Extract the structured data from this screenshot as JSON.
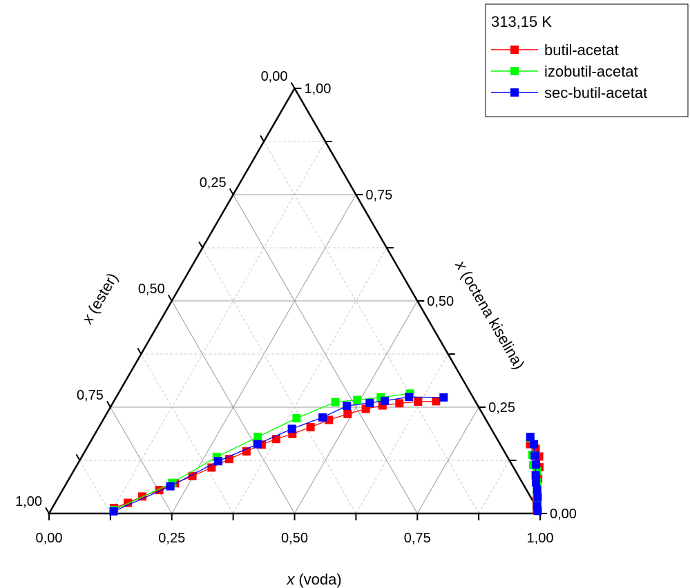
{
  "chart_data": {
    "type": "ternary",
    "temperature_label": "313,15 K",
    "axes": {
      "bottom": {
        "var": "x",
        "name": "(voda)",
        "ticks": [
          "0,00",
          "0,25",
          "0,50",
          "0,75",
          "1,00"
        ]
      },
      "left": {
        "var": "x",
        "name": "(ester)",
        "ticks": [
          "0,00",
          "0,25",
          "0,50",
          "0,75",
          "1,00"
        ]
      },
      "right": {
        "var": "x",
        "name": "(octena kiselina)",
        "ticks": [
          "0,00",
          "0,25",
          "0,50",
          "0,75",
          "1,00"
        ]
      }
    },
    "grid": true,
    "legend": {
      "position": "top-right"
    },
    "series": [
      {
        "name": "butil-acetat",
        "color": "#ff0000",
        "points": [
          [
            0.126,
            0.013
          ],
          [
            0.148,
            0.025
          ],
          [
            0.17,
            0.04
          ],
          [
            0.197,
            0.055
          ],
          [
            0.221,
            0.071
          ],
          [
            0.248,
            0.088
          ],
          [
            0.277,
            0.108
          ],
          [
            0.303,
            0.128
          ],
          [
            0.329,
            0.146
          ],
          [
            0.352,
            0.162
          ],
          [
            0.375,
            0.175
          ],
          [
            0.402,
            0.187
          ],
          [
            0.431,
            0.203
          ],
          [
            0.46,
            0.22
          ],
          [
            0.491,
            0.234
          ],
          [
            0.522,
            0.246
          ],
          [
            0.552,
            0.254
          ],
          [
            0.584,
            0.259
          ],
          [
            0.62,
            0.263
          ],
          [
            0.656,
            0.264
          ],
          [
            0.898,
            0.163
          ],
          [
            0.915,
            0.152
          ],
          [
            0.931,
            0.134
          ],
          [
            0.944,
            0.109
          ],
          [
            0.955,
            0.082
          ],
          [
            0.964,
            0.06
          ],
          [
            0.971,
            0.045
          ],
          [
            0.977,
            0.032
          ],
          [
            0.983,
            0.02
          ],
          [
            0.989,
            0.008
          ]
        ]
      },
      {
        "name": "izobutil-acetat",
        "color": "#00ff00",
        "points": [
          [
            0.128,
            0.008
          ],
          [
            0.215,
            0.072
          ],
          [
            0.275,
            0.133
          ],
          [
            0.335,
            0.18
          ],
          [
            0.392,
            0.224
          ],
          [
            0.452,
            0.262
          ],
          [
            0.494,
            0.267
          ],
          [
            0.539,
            0.273
          ],
          [
            0.594,
            0.282
          ],
          [
            0.891,
            0.178
          ],
          [
            0.915,
            0.138
          ],
          [
            0.929,
            0.114
          ],
          [
            0.944,
            0.099
          ],
          [
            0.956,
            0.074
          ],
          [
            0.968,
            0.051
          ],
          [
            0.978,
            0.032
          ],
          [
            0.987,
            0.014
          ]
        ]
      },
      {
        "name": "sec-butil-acetat",
        "color": "#0000ff",
        "points": [
          [
            0.129,
            0.005
          ],
          [
            0.215,
            0.064
          ],
          [
            0.283,
            0.123
          ],
          [
            0.343,
            0.163
          ],
          [
            0.395,
            0.199
          ],
          [
            0.444,
            0.226
          ],
          [
            0.48,
            0.253
          ],
          [
            0.523,
            0.26
          ],
          [
            0.551,
            0.265
          ],
          [
            0.596,
            0.274
          ],
          [
            0.667,
            0.273
          ],
          [
            0.89,
            0.18
          ],
          [
            0.906,
            0.163
          ],
          [
            0.921,
            0.136
          ],
          [
            0.934,
            0.115
          ],
          [
            0.946,
            0.09
          ],
          [
            0.955,
            0.073
          ],
          [
            0.966,
            0.056
          ],
          [
            0.976,
            0.038
          ],
          [
            0.985,
            0.018
          ],
          [
            0.992,
            0.006
          ]
        ]
      }
    ]
  }
}
